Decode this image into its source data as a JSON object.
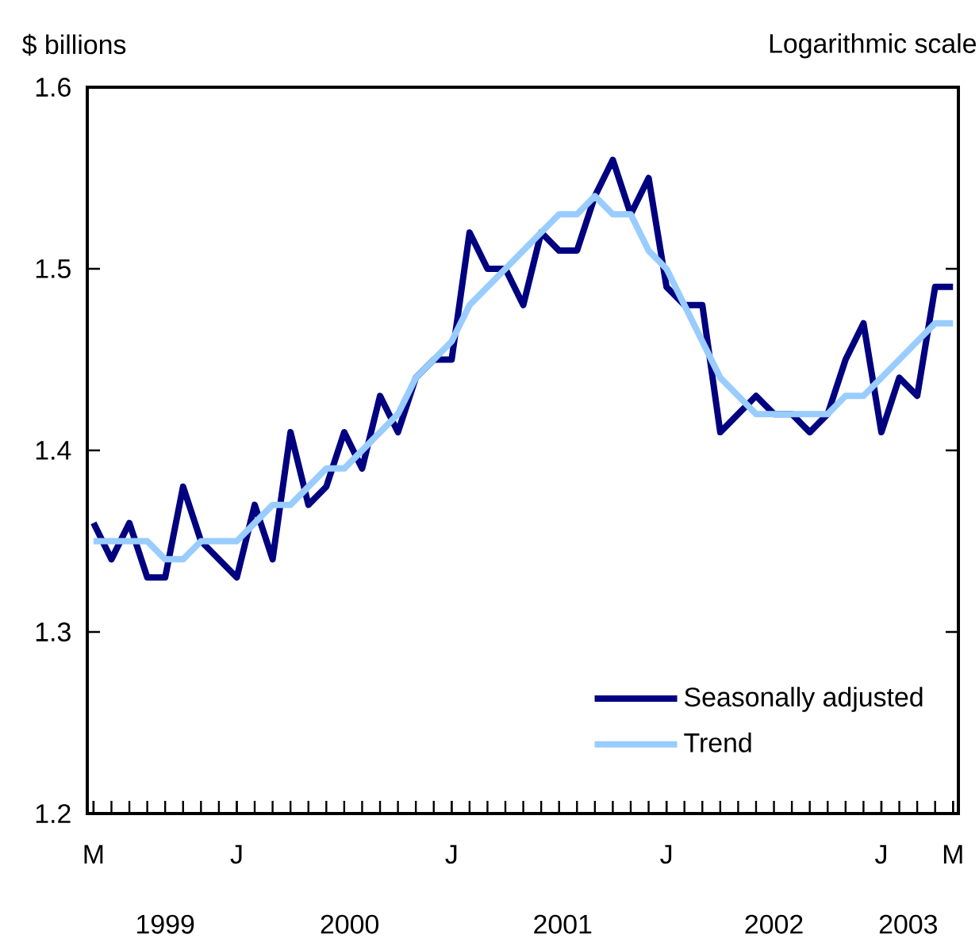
{
  "chart_data": {
    "type": "line",
    "ylabel": "$ billions",
    "annotations": [
      "Logarithmic scale",
      "1999",
      "2000",
      "2001",
      "2002",
      "2003"
    ],
    "categories": [
      "M",
      null,
      null,
      null,
      null,
      null,
      null,
      null,
      "J",
      null,
      null,
      null,
      null,
      null,
      null,
      null,
      null,
      null,
      null,
      null,
      "J",
      null,
      null,
      null,
      null,
      null,
      null,
      null,
      null,
      null,
      null,
      null,
      "J",
      null,
      null,
      null,
      null,
      null,
      null,
      null,
      null,
      null,
      null,
      null,
      "J",
      null,
      null,
      null,
      "M"
    ],
    "series": [
      {
        "name": "Seasonally adjusted",
        "color": "#000080",
        "values": [
          1.36,
          1.34,
          1.36,
          1.33,
          1.33,
          1.38,
          1.35,
          1.34,
          1.33,
          1.37,
          1.34,
          1.41,
          1.37,
          1.38,
          1.41,
          1.39,
          1.43,
          1.41,
          1.44,
          1.45,
          1.45,
          1.52,
          1.5,
          1.5,
          1.48,
          1.52,
          1.51,
          1.51,
          1.54,
          1.56,
          1.53,
          1.55,
          1.49,
          1.48,
          1.48,
          1.41,
          1.42,
          1.43,
          1.42,
          1.42,
          1.41,
          1.42,
          1.45,
          1.47,
          1.41,
          1.44,
          1.43,
          1.49,
          1.49
        ]
      },
      {
        "name": "Trend",
        "color": "#99ccff",
        "values": [
          1.35,
          1.35,
          1.35,
          1.35,
          1.34,
          1.34,
          1.35,
          1.35,
          1.35,
          1.36,
          1.37,
          1.37,
          1.38,
          1.39,
          1.39,
          1.4,
          1.41,
          1.42,
          1.44,
          1.45,
          1.46,
          1.48,
          1.49,
          1.5,
          1.51,
          1.52,
          1.53,
          1.53,
          1.54,
          1.53,
          1.53,
          1.51,
          1.5,
          1.48,
          1.46,
          1.44,
          1.43,
          1.42,
          1.42,
          1.42,
          1.42,
          1.42,
          1.43,
          1.43,
          1.44,
          1.45,
          1.46,
          1.47,
          1.47
        ]
      }
    ],
    "ylim": [
      1.2,
      1.6
    ],
    "yticks": [
      1.2,
      1.3,
      1.4,
      1.5,
      1.6
    ],
    "grid": false,
    "legend": "bottom right",
    "marker": "none",
    "line_style": "solid"
  }
}
